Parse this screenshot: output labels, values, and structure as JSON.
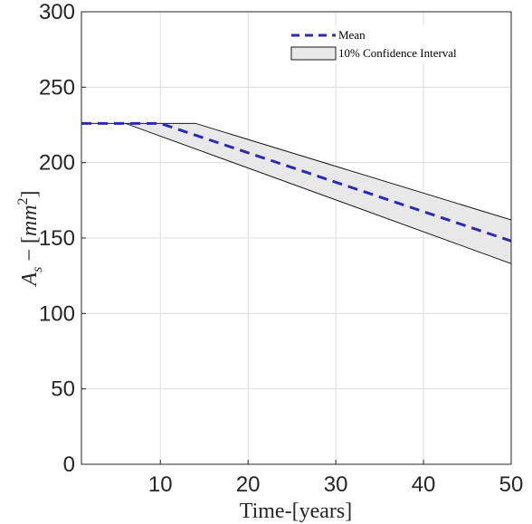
{
  "chart_data": {
    "type": "line",
    "title": "",
    "xlabel": "Time-[years]",
    "ylabel": "A_s - [mm^2]",
    "ylabel_parts": {
      "symbol": "A",
      "subscript": "s",
      "dash": "−",
      "lbracket": "[",
      "unit": "mm",
      "exponent": "2",
      "rbracket": "]"
    },
    "xlim": [
      1,
      50
    ],
    "ylim": [
      0,
      300
    ],
    "xticks": [
      10,
      20,
      30,
      40,
      50
    ],
    "yticks": [
      0,
      50,
      100,
      150,
      200,
      250,
      300
    ],
    "grid": true,
    "legend_position": "top-right",
    "series": [
      {
        "name": "Mean",
        "style": "dashed",
        "color": "#2a2ab8",
        "x": [
          1,
          10,
          50
        ],
        "y": [
          226,
          226,
          148
        ]
      }
    ],
    "band": {
      "name": "10% Confidence Interval",
      "fill": "#e8e8e8",
      "edge": "#1a1a1a",
      "upper": {
        "x": [
          1,
          14,
          50
        ],
        "y": [
          226,
          226,
          162
        ]
      },
      "lower": {
        "x": [
          1,
          6,
          50
        ],
        "y": [
          226,
          226,
          133
        ]
      }
    }
  }
}
